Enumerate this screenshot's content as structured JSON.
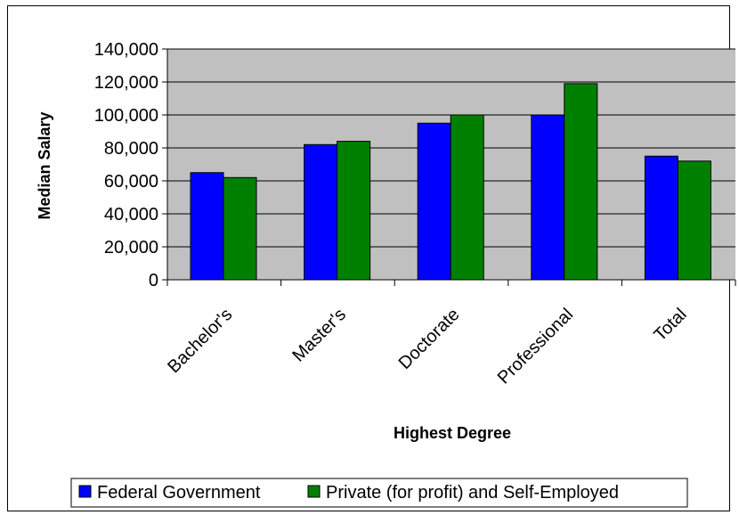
{
  "chart_data": {
    "type": "bar",
    "title": "",
    "xlabel": "Highest Degree",
    "ylabel": "Median Salary",
    "categories": [
      "Bachelor's",
      "Master's",
      "Doctorate",
      "Professional",
      "Total"
    ],
    "series": [
      {
        "name": "Federal Government",
        "color": "#0000FF",
        "values": [
          65000,
          82000,
          95000,
          100000,
          75000
        ]
      },
      {
        "name": "Private (for profit) and Self-Employed",
        "color": "#008000",
        "values": [
          62000,
          84000,
          100000,
          119000,
          72000
        ]
      }
    ],
    "ylim": [
      0,
      140000
    ],
    "yticks": [
      "0",
      "20,000",
      "40,000",
      "60,000",
      "80,000",
      "100,000",
      "120,000",
      "140,000"
    ],
    "grid": true,
    "plot_background": "#C0C0C0",
    "legend_position": "bottom"
  }
}
